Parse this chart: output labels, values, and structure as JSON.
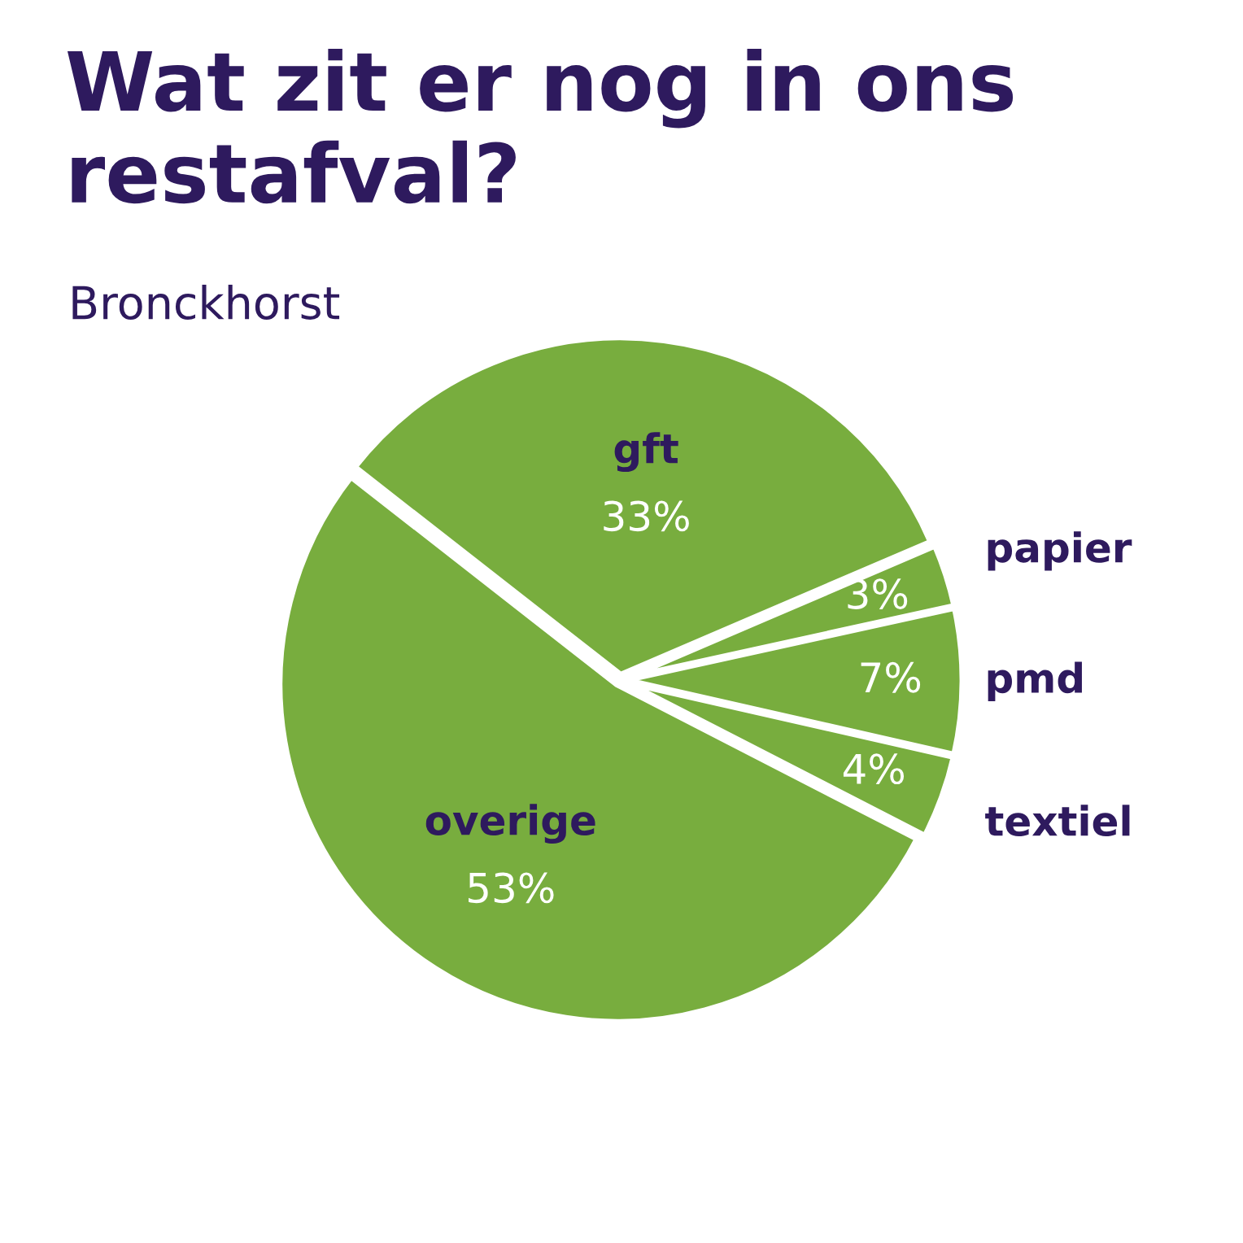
{
  "chart_data": {
    "type": "pie",
    "title": "Wat zit er nog in ons restafval?",
    "subtitle": "Bronckhorst",
    "categories": [
      "gft",
      "papier",
      "pmd",
      "textiel",
      "overige"
    ],
    "values": [
      33,
      3,
      7,
      4,
      53
    ],
    "value_labels": [
      "33%",
      "3%",
      "7%",
      "4%",
      "53%"
    ],
    "colors": [
      "#78ad3e",
      "#78ad3e",
      "#78ad3e",
      "#78ad3e",
      "#78ad3e"
    ]
  }
}
